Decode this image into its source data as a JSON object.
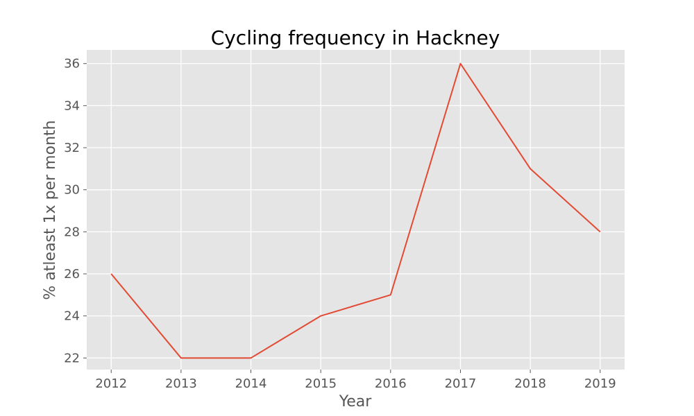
{
  "chart_data": {
    "type": "line",
    "title": "Cycling frequency in Hackney",
    "xlabel": "Year",
    "ylabel": "% atleast 1x per month",
    "x": [
      2012,
      2013,
      2014,
      2015,
      2016,
      2017,
      2018,
      2019
    ],
    "series": [
      {
        "values": [
          26,
          22,
          22,
          24,
          25,
          36,
          31,
          28
        ],
        "color": "#E24A33"
      }
    ],
    "xlim": [
      2011.65,
      2019.35
    ],
    "ylim": [
      21.45,
      36.65
    ],
    "yticks": [
      22,
      24,
      26,
      28,
      30,
      32,
      34,
      36
    ],
    "grid": true,
    "style": {
      "plot_background": "#E5E5E5",
      "grid_color": "#FFFFFF",
      "text_color": "#555555"
    }
  }
}
